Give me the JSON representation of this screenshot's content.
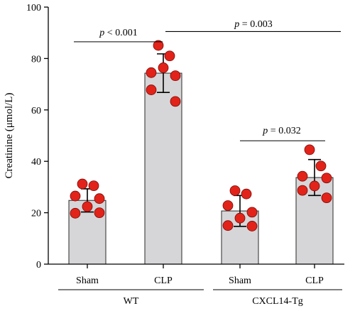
{
  "chart_data": {
    "type": "bar",
    "ylabel": "Creatinine (μmol/L)",
    "ylim": [
      0,
      100
    ],
    "yticks": [
      0,
      20,
      40,
      60,
      80,
      100
    ],
    "grid": false,
    "colors": {
      "bar": "#d6d6d8",
      "bar_edge": "#2a2a2a",
      "point": "#e2231a",
      "point_edge": "#7a0a06",
      "error": "#000000"
    },
    "categories": [
      "Sham",
      "CLP",
      "Sham",
      "CLP"
    ],
    "groups": [
      {
        "label": "WT",
        "categories": [
          "Sham",
          "CLP"
        ]
      },
      {
        "label": "CXCL14-Tg",
        "categories": [
          "Sham",
          "CLP"
        ]
      }
    ],
    "values": [
      24.8,
      74.3,
      20.7,
      33.7
    ],
    "errors": [
      4.5,
      7.5,
      6.0,
      7.0
    ],
    "points": [
      [
        31.2,
        30.5,
        26.5,
        25.5,
        22.4,
        19.8,
        20.0
      ],
      [
        85.1,
        81.0,
        74.5,
        73.3,
        76.4,
        67.8,
        63.3
      ],
      [
        28.6,
        27.3,
        22.8,
        20.2,
        17.9,
        15.0,
        14.8
      ],
      [
        44.5,
        38.2,
        34.2,
        33.5,
        30.4,
        28.7,
        25.8
      ]
    ],
    "annotations": [
      {
        "prefix": "p",
        "text": " < 0.001",
        "y": 86.5
      },
      {
        "prefix": "p",
        "text": " = 0.003",
        "y": 90.5
      },
      {
        "prefix": "p",
        "text": " = 0.032",
        "y": 48.0
      }
    ]
  }
}
